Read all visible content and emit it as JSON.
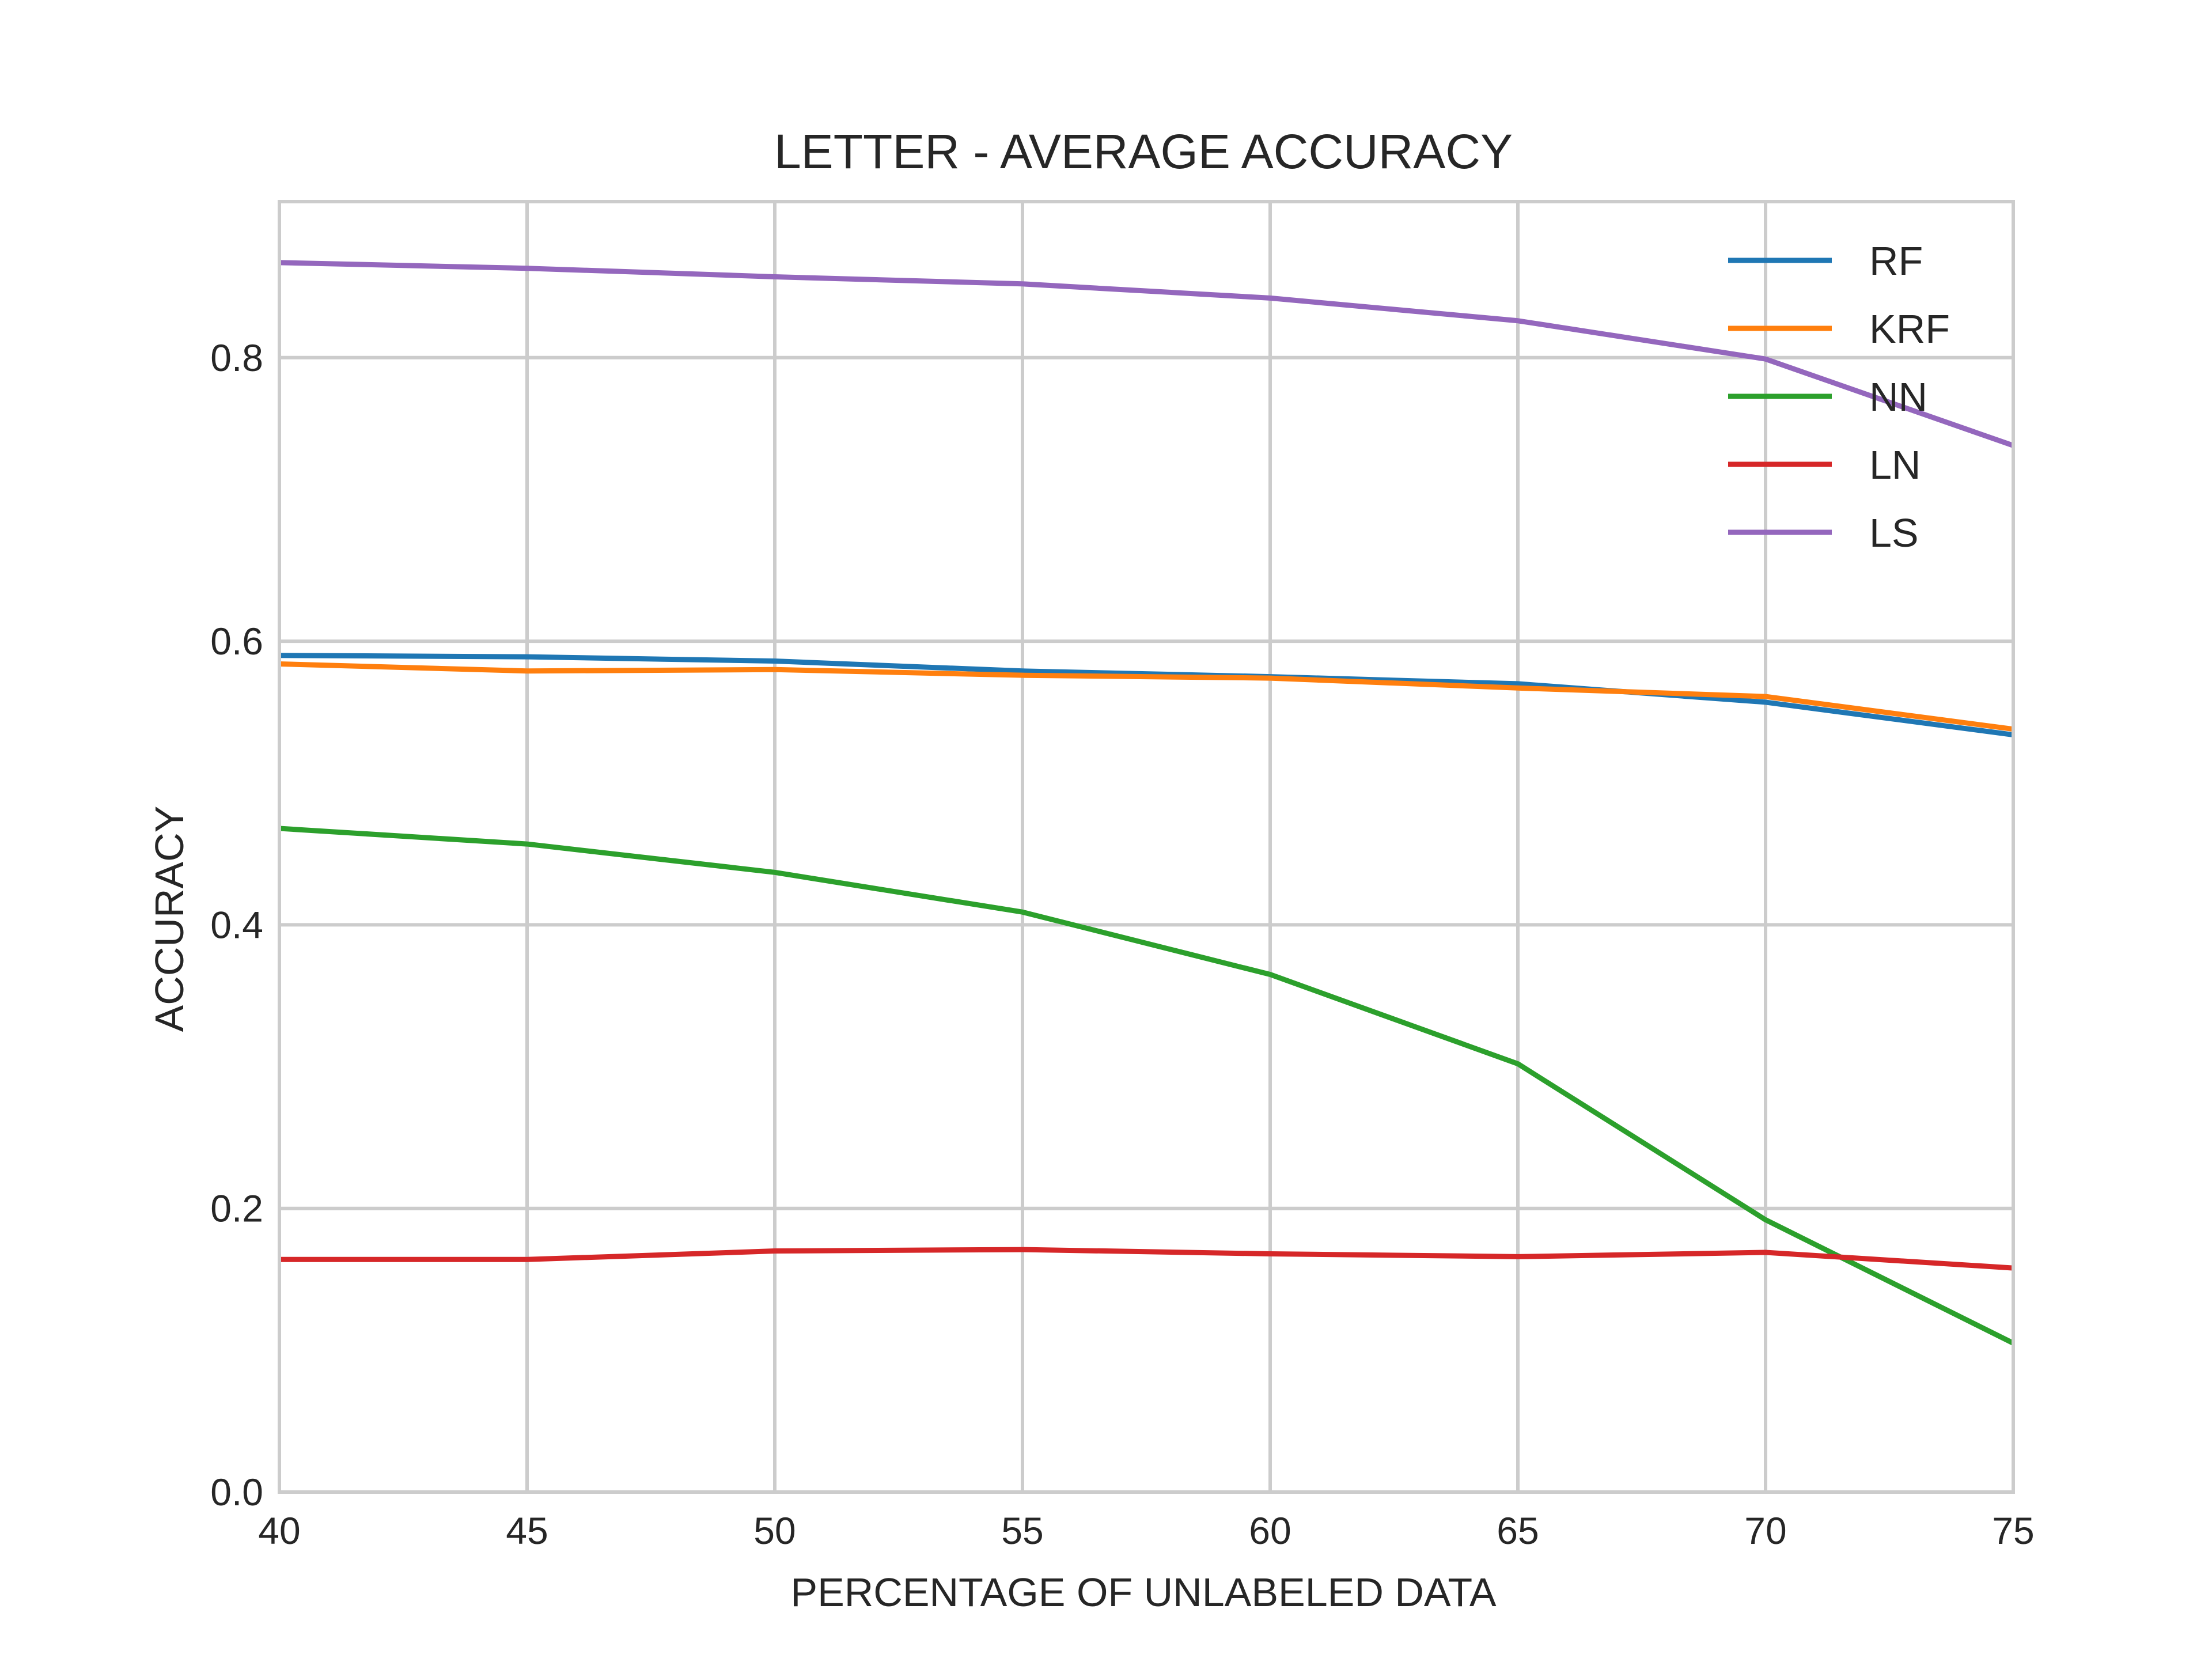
{
  "chart_data": {
    "type": "line",
    "title": "LETTER - AVERAGE ACCURACY",
    "xlabel": "PERCENTAGE OF UNLABELED DATA",
    "ylabel": "ACCURACY",
    "x": [
      40,
      45,
      50,
      55,
      60,
      65,
      70,
      75
    ],
    "xlim": [
      40,
      75
    ],
    "ylim": [
      0,
      0.91
    ],
    "xticks": [
      40,
      45,
      50,
      55,
      60,
      65,
      70,
      75
    ],
    "yticks": [
      0.0,
      0.2,
      0.4,
      0.6,
      0.8
    ],
    "xtick_labels": [
      "40",
      "45",
      "50",
      "55",
      "60",
      "65",
      "70",
      "75"
    ],
    "ytick_labels": [
      "0.0",
      "0.2",
      "0.4",
      "0.6",
      "0.8"
    ],
    "grid": true,
    "legend_position": "top-right",
    "series": [
      {
        "name": "RF",
        "color": "#1f77b4",
        "values": [
          0.59,
          0.589,
          0.586,
          0.579,
          0.575,
          0.57,
          0.557,
          0.534
        ]
      },
      {
        "name": "KRF",
        "color": "#ff7f0e",
        "values": [
          0.584,
          0.579,
          0.58,
          0.576,
          0.574,
          0.567,
          0.561,
          0.538
        ]
      },
      {
        "name": "NN",
        "color": "#2ca02c",
        "values": [
          0.468,
          0.457,
          0.437,
          0.409,
          0.365,
          0.302,
          0.192,
          0.105
        ]
      },
      {
        "name": "LN",
        "color": "#d62728",
        "values": [
          0.164,
          0.164,
          0.17,
          0.171,
          0.168,
          0.166,
          0.169,
          0.158
        ]
      },
      {
        "name": "LS",
        "color": "#9467bd",
        "values": [
          0.867,
          0.863,
          0.857,
          0.852,
          0.842,
          0.826,
          0.799,
          0.738
        ]
      }
    ]
  }
}
